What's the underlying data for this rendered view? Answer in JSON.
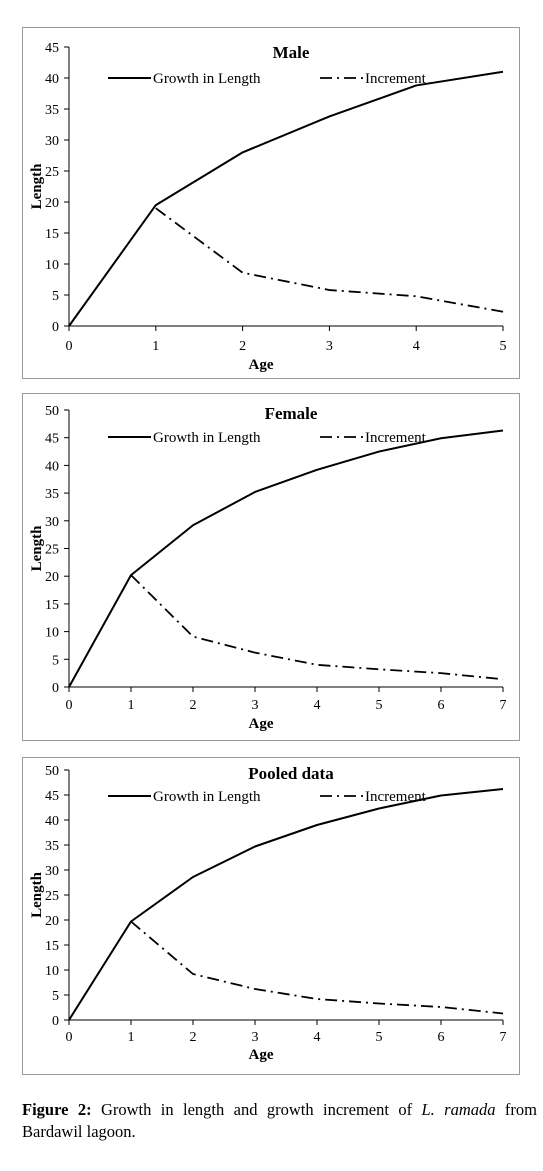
{
  "chart_data": [
    {
      "type": "line",
      "title": "Male",
      "xlabel": "Age",
      "ylabel": "Length",
      "xlim": [
        0,
        5
      ],
      "ylim": [
        0,
        45
      ],
      "xticks": [
        0,
        1,
        2,
        3,
        4,
        5
      ],
      "yticks": [
        0,
        5,
        10,
        15,
        20,
        25,
        30,
        35,
        40,
        45
      ],
      "legend": "top",
      "grid": false,
      "series": [
        {
          "name": "Growth in Length",
          "style": "solid",
          "x": [
            0,
            1,
            2,
            3,
            4,
            5
          ],
          "values": [
            0,
            19.5,
            28,
            33.8,
            38.8,
            41
          ]
        },
        {
          "name": "Increment",
          "style": "dash-dot",
          "x": [
            1,
            2,
            3,
            4,
            5
          ],
          "values": [
            19,
            8.6,
            5.8,
            4.8,
            2.3
          ]
        }
      ]
    },
    {
      "type": "line",
      "title": "Female",
      "xlabel": "Age",
      "ylabel": "Length",
      "xlim": [
        0,
        7
      ],
      "ylim": [
        0,
        50
      ],
      "xticks": [
        0,
        1,
        2,
        3,
        4,
        5,
        6,
        7
      ],
      "yticks": [
        0,
        5,
        10,
        15,
        20,
        25,
        30,
        35,
        40,
        45,
        50
      ],
      "legend": "top",
      "grid": false,
      "series": [
        {
          "name": "Growth in Length",
          "style": "solid",
          "x": [
            0,
            1,
            2,
            3,
            4,
            5,
            6,
            7
          ],
          "values": [
            0,
            20.2,
            29.2,
            35.2,
            39.2,
            42.5,
            44.9,
            46.3
          ]
        },
        {
          "name": "Increment",
          "style": "dash-dot",
          "x": [
            1,
            2,
            3,
            4,
            5,
            6,
            7
          ],
          "values": [
            20.2,
            9.1,
            6.2,
            4,
            3.2,
            2.5,
            1.4
          ]
        }
      ]
    },
    {
      "type": "line",
      "title": "Pooled data",
      "xlabel": "Age",
      "ylabel": "Length",
      "xlim": [
        0,
        7
      ],
      "ylim": [
        0,
        50
      ],
      "xticks": [
        0,
        1,
        2,
        3,
        4,
        5,
        6,
        7
      ],
      "yticks": [
        0,
        5,
        10,
        15,
        20,
        25,
        30,
        35,
        40,
        45,
        50
      ],
      "legend": "top",
      "grid": false,
      "series": [
        {
          "name": "Growth in Length",
          "style": "solid",
          "x": [
            0,
            1,
            2,
            3,
            4,
            5,
            6,
            7
          ],
          "values": [
            0,
            19.7,
            28.6,
            34.7,
            39,
            42.3,
            44.9,
            46.2
          ]
        },
        {
          "name": "Increment",
          "style": "dash-dot",
          "x": [
            1,
            2,
            3,
            4,
            5,
            6,
            7
          ],
          "values": [
            19.7,
            9.2,
            6.2,
            4.2,
            3.3,
            2.6,
            1.3
          ]
        }
      ]
    }
  ],
  "caption": {
    "label": "Figure 2:",
    "text_before": " Growth in length and growth increment of ",
    "species": "L. ramada",
    "text_after": " from Bardawil lagoon."
  }
}
